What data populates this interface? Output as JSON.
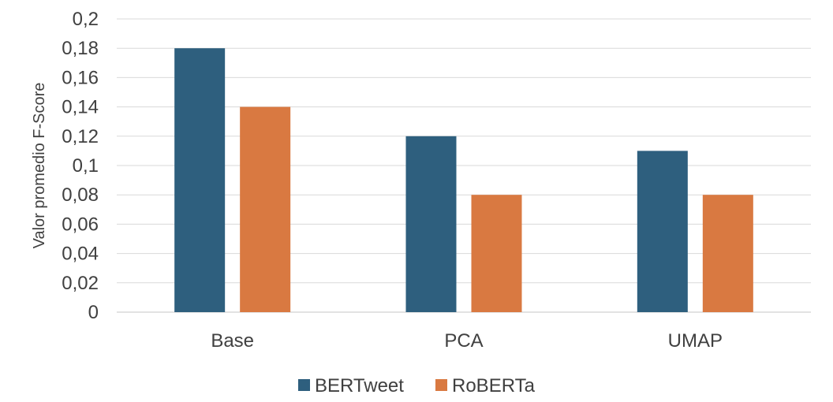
{
  "chart_data": {
    "type": "bar",
    "title": "",
    "xlabel": "",
    "ylabel": "Valor promedio F-Score",
    "categories": [
      "Base",
      "PCA",
      "UMAP"
    ],
    "series": [
      {
        "name": "BERTweet",
        "color": "#2e5f7e",
        "values": [
          0.18,
          0.12,
          0.11
        ]
      },
      {
        "name": "RoBERTa",
        "color": "#d97941",
        "values": [
          0.14,
          0.08,
          0.08
        ]
      }
    ],
    "ylim": [
      0,
      0.2
    ],
    "yticks": [
      {
        "value": 0,
        "label": "0"
      },
      {
        "value": 0.02,
        "label": "0,02"
      },
      {
        "value": 0.04,
        "label": "0,04"
      },
      {
        "value": 0.06,
        "label": "0,06"
      },
      {
        "value": 0.08,
        "label": "0,08"
      },
      {
        "value": 0.1,
        "label": "0,1"
      },
      {
        "value": 0.12,
        "label": "0,12"
      },
      {
        "value": 0.14,
        "label": "0,14"
      },
      {
        "value": 0.16,
        "label": "0,16"
      },
      {
        "value": 0.18,
        "label": "0,18"
      },
      {
        "value": 0.2,
        "label": "0,2"
      }
    ],
    "grid": true,
    "legend": "bottom"
  }
}
